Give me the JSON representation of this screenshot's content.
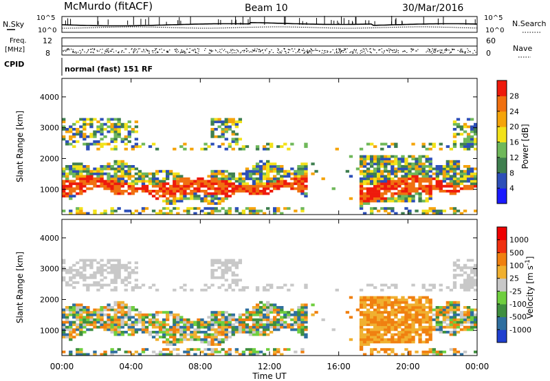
{
  "chart_data": {
    "type": "heatmap",
    "header": {
      "station": "McMurdo (fitACF)",
      "beam": "Beam 10",
      "date": "30/Mar/2016"
    },
    "summary_panels": {
      "nsky_label": "N.Sky",
      "nsearch_label": "N.Search",
      "noise_ticks": [
        "10^5",
        "10^0"
      ],
      "freq_label_line1": "Freq.",
      "freq_label_line2": "[MHz]",
      "freq_ticks": [
        "12",
        "8"
      ],
      "nave_label": "Nave",
      "nave_ticks": [
        "60",
        "0"
      ],
      "cpid_label": "CPID",
      "cpid_text": "normal (fast) 151 RF"
    },
    "x_axis": {
      "label": "Time UT",
      "ticks": [
        "00:00",
        "04:00",
        "08:00",
        "12:00",
        "16:00",
        "20:00",
        "00:00"
      ],
      "range_hours": [
        0,
        24
      ]
    },
    "y_axis": {
      "label": "Slant Range [km]",
      "ticks": [
        1000,
        2000,
        3000,
        4000
      ],
      "range_km": [
        180,
        4600
      ]
    },
    "panels": [
      {
        "name": "power",
        "colorbar_label": "Power [dB]",
        "colorbar_ticks": [
          "4",
          "8",
          "12",
          "16",
          "20",
          "24",
          "28"
        ],
        "colorbar_colors": [
          "#1a1aff",
          "#2d4fb8",
          "#3f7f4f",
          "#6fb85a",
          "#f2e21a",
          "#f5a40a",
          "#f07010",
          "#ee1a0c"
        ]
      },
      {
        "name": "velocity",
        "colorbar_label": "Velocity [m s^-1]",
        "colorbar_ticks": [
          "1000",
          "500",
          "100",
          "25",
          "-25",
          "-100",
          "-500",
          "-1000"
        ],
        "colorbar_colors": [
          "#1f3fcf",
          "#2f6f9f",
          "#3f8f3f",
          "#6fcf3f",
          "#c8c8c8",
          "#f0b030",
          "#f08010",
          "#f03010",
          "#ee0000"
        ]
      }
    ],
    "grid": false,
    "legend_placement": "right"
  }
}
